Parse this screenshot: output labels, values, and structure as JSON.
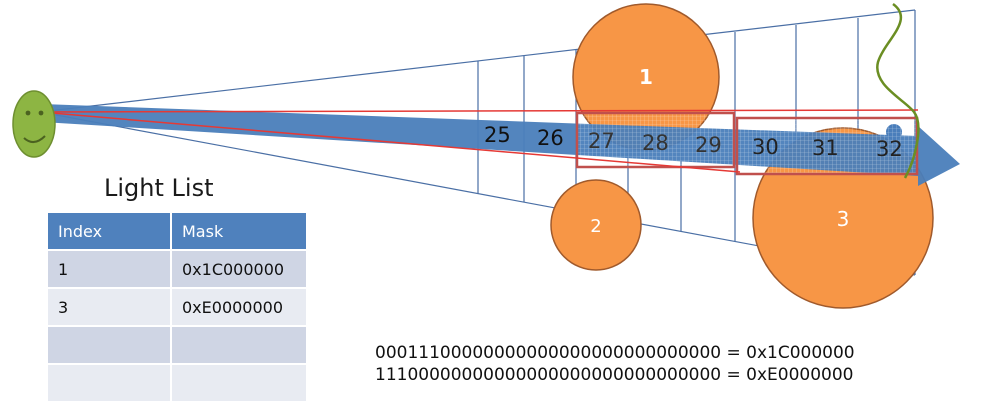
{
  "lights": [
    {
      "label": "1"
    },
    {
      "label": "2"
    },
    {
      "label": "3"
    }
  ],
  "clusters": {
    "labels": [
      "25",
      "26",
      "27",
      "28",
      "29",
      "30",
      "31",
      "32"
    ]
  },
  "light_list": {
    "title": "Light List",
    "headers": [
      "Index",
      "Mask"
    ],
    "rows": [
      {
        "index": "1",
        "mask": "0x1C000000"
      },
      {
        "index": "3",
        "mask": "0xE0000000"
      },
      {
        "index": "",
        "mask": ""
      },
      {
        "index": "",
        "mask": ""
      }
    ]
  },
  "binary_lines": [
    "00011100000000000000000000000000 = 0x1C000000",
    "11100000000000000000000000000000 = 0xE0000000"
  ],
  "colors": {
    "light_fill": "#f79646",
    "light_stroke": "#a05a2c",
    "ray": "#4a7ebb",
    "frustum": "#4a6fa5",
    "highlight": "#c0504d",
    "face": "#8db543",
    "curve": "#6b8e23"
  }
}
